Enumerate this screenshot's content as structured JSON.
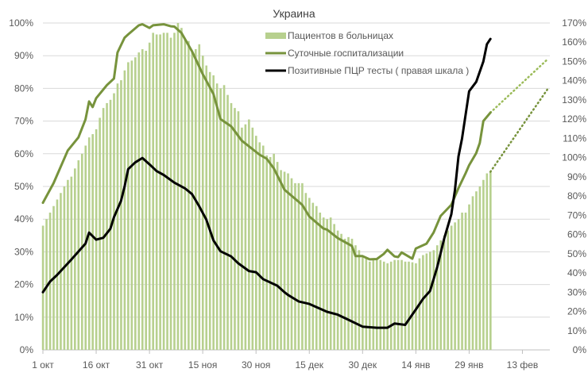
{
  "chart_data": {
    "type": "bar+line",
    "title": "Украина",
    "legend_position": "top-center",
    "grid": true,
    "colors": {
      "bars": "#b7d08e",
      "daily_line": "#77933c",
      "pcr_line": "#000000",
      "grid": "#d9d9d9"
    },
    "y_left": {
      "range": [
        0,
        100
      ],
      "ticks": [
        "0%",
        "10%",
        "20%",
        "30%",
        "40%",
        "50%",
        "60%",
        "70%",
        "80%",
        "90%",
        "100%"
      ]
    },
    "y_right": {
      "range": [
        0,
        170
      ],
      "ticks": [
        "0%",
        "10%",
        "20%",
        "30%",
        "40%",
        "50%",
        "60%",
        "70%",
        "80%",
        "90%",
        "100%",
        "110%",
        "120%",
        "130%",
        "140%",
        "150%",
        "160%",
        "170%"
      ]
    },
    "x_ticks": [
      "1 окт",
      "16 окт",
      "31 окт",
      "15 ноя",
      "30 ноя",
      "15 дек",
      "30 дек",
      "14 янв",
      "29 янв",
      "13 фев"
    ],
    "bars": {
      "name": "Пациентов в больницах",
      "axis": "left",
      "categories": [
        "1 окт",
        "2 окт",
        "3 окт",
        "4 окт",
        "5 окт",
        "6 окт",
        "7 окт",
        "8 окт",
        "9 окт",
        "10 окт",
        "11 окт",
        "12 окт",
        "13 окт",
        "14 окт",
        "15 окт",
        "16 окт",
        "17 окт",
        "18 окт",
        "19 окт",
        "20 окт",
        "21 окт",
        "22 окт",
        "23 окт",
        "24 окт",
        "25 окт",
        "26 окт",
        "27 окт",
        "28 окт",
        "29 окт",
        "30 окт",
        "31 окт",
        "1 ноя",
        "2 ноя",
        "3 ноя",
        "4 ноя",
        "5 ноя",
        "6 ноя",
        "7 ноя",
        "8 ноя",
        "9 ноя",
        "10 ноя",
        "11 ноя",
        "12 ноя",
        "13 ноя",
        "14 ноя",
        "15 ноя",
        "16 ноя",
        "17 ноя",
        "18 ноя",
        "19 ноя",
        "20 ноя",
        "21 ноя",
        "22 ноя",
        "23 ноя",
        "24 ноя",
        "25 ноя",
        "26 ноя",
        "27 ноя",
        "28 ноя",
        "29 ноя",
        "30 ноя",
        "1 дек",
        "2 дек",
        "3 дек",
        "4 дек",
        "5 дек",
        "6 дек",
        "7 дек",
        "8 дек",
        "9 дек",
        "10 дек",
        "11 дек",
        "12 дек",
        "13 дек",
        "14 дек",
        "15 дек",
        "16 дек",
        "17 дек",
        "18 дек",
        "19 дек",
        "20 дек",
        "21 дек",
        "22 дек",
        "23 дек",
        "24 дек",
        "25 дек",
        "26 дек",
        "27 дек",
        "28 дек",
        "29 дек",
        "30 дек",
        "31 дек",
        "1 янв",
        "2 янв",
        "3 янв",
        "4 янв",
        "5 янв",
        "6 янв",
        "7 янв",
        "8 янв",
        "9 янв",
        "10 янв",
        "11 янв",
        "12 янв",
        "13 янв",
        "14 янв",
        "15 янв",
        "16 янв",
        "17 янв",
        "18 янв",
        "19 янв",
        "20 янв",
        "21 янв",
        "22 янв",
        "23 янв",
        "24 янв",
        "25 янв",
        "26 янв",
        "27 янв",
        "28 янв",
        "29 янв",
        "30 янв",
        "31 янв",
        "1 фев",
        "2 фев",
        "3 фев",
        "4 фев"
      ],
      "values": [
        38,
        40,
        42,
        44,
        46,
        48,
        50,
        52,
        53,
        55.5,
        58,
        60,
        62.5,
        65,
        66,
        67.5,
        71,
        74,
        75.5,
        76.5,
        78.5,
        81.5,
        82.5,
        85.5,
        88,
        88.5,
        89.5,
        91,
        92,
        91.5,
        94,
        97,
        96.5,
        96.5,
        97,
        97,
        95.5,
        97,
        100,
        98.5,
        95,
        94.5,
        91,
        92,
        93.5,
        90,
        87,
        85,
        84,
        81.5,
        80,
        81,
        78,
        75.5,
        74,
        73,
        68,
        69,
        70.5,
        68,
        65.5,
        63.5,
        62.5,
        59.5,
        59,
        60,
        57.5,
        55,
        54.5,
        54,
        52.5,
        51,
        51,
        51,
        48,
        46.5,
        45,
        44,
        42,
        40.5,
        40,
        40.5,
        38.5,
        36.5,
        35.5,
        34,
        34.5,
        34,
        32,
        30.5,
        28.5,
        28,
        27,
        28,
        27.5,
        27.5,
        27,
        26.5,
        27,
        27.5,
        27.5,
        27.5,
        27,
        27,
        26.8,
        26.5,
        28,
        29,
        29.5,
        30,
        30.5,
        32,
        33.5,
        35,
        36.5,
        38,
        39,
        40,
        42,
        42,
        44.5,
        47,
        48.5,
        50,
        52,
        54,
        54.5
      ],
      "trend": [
        [
          "4 фев",
          54.5
        ],
        [
          "20 фев",
          79.6
        ]
      ]
    },
    "lines": [
      {
        "name": "Суточные госпитализации",
        "axis": "left",
        "points": [
          [
            "1 окт",
            45
          ],
          [
            "4 окт",
            51
          ],
          [
            "8 окт",
            61
          ],
          [
            "11 окт",
            65
          ],
          [
            "13 окт",
            70.5
          ],
          [
            "14 окт",
            76
          ],
          [
            "15 окт",
            74.3
          ],
          [
            "16 окт",
            77
          ],
          [
            "19 окт",
            81
          ],
          [
            "21 окт",
            83
          ],
          [
            "22 окт",
            91
          ],
          [
            "24 окт",
            95.5
          ],
          [
            "25 окт",
            96.5
          ],
          [
            "28 окт",
            99.3
          ],
          [
            "29 окт",
            99.6
          ],
          [
            "31 окт",
            98.5
          ],
          [
            "1 ноя",
            99.3
          ],
          [
            "4 ноя",
            99.6
          ],
          [
            "6 ноя",
            99
          ],
          [
            "7 ноя",
            98.9
          ],
          [
            "9 ноя",
            97
          ],
          [
            "12 ноя",
            91.3
          ],
          [
            "15 ноя",
            84.4
          ],
          [
            "18 ноя",
            78.3
          ],
          [
            "20 ноя",
            70.6
          ],
          [
            "23 ноя",
            68.4
          ],
          [
            "26 ноя",
            64
          ],
          [
            "1 дек",
            59.7
          ],
          [
            "3 дек",
            58.5
          ],
          [
            "5 дек",
            55.5
          ],
          [
            "8 дек",
            49
          ],
          [
            "13 дек",
            44.4
          ],
          [
            "15 дек",
            40.8
          ],
          [
            "19 дек",
            37.1
          ],
          [
            "20 дек",
            36.8
          ],
          [
            "23 дек",
            34.2
          ],
          [
            "27 дек",
            31.8
          ],
          [
            "28 дек",
            28.7
          ],
          [
            "30 дек",
            28.7
          ],
          [
            "1 янв",
            27.7
          ],
          [
            "3 янв",
            27.8
          ],
          [
            "5 янв",
            29.4
          ],
          [
            "6 янв",
            30.6
          ],
          [
            "8 янв",
            28.6
          ],
          [
            "9 янв",
            28.4
          ],
          [
            "10 янв",
            29.8
          ],
          [
            "13 янв",
            27.9
          ],
          [
            "14 янв",
            31
          ],
          [
            "17 янв",
            32.5
          ],
          [
            "19 янв",
            35.9
          ],
          [
            "21 янв",
            41
          ],
          [
            "24 янв",
            44.4
          ],
          [
            "26 янв",
            49.5
          ],
          [
            "28 янв",
            54
          ],
          [
            "29 янв",
            56.5
          ],
          [
            "31 янв",
            60.2
          ],
          [
            "1 фев",
            63.3
          ],
          [
            "2 фев",
            70
          ],
          [
            "4 фев",
            72.6
          ]
        ],
        "trend": [
          [
            "4 фев",
            72.6
          ],
          [
            "20 фев",
            88.8
          ]
        ]
      },
      {
        "name": "Позитивные ПЦР тесты ( правая шкала )",
        "axis": "right",
        "points": [
          [
            "1 окт",
            30
          ],
          [
            "3 окт",
            35.5
          ],
          [
            "5 окт",
            39
          ],
          [
            "9 окт",
            47
          ],
          [
            "13 окт",
            55.3
          ],
          [
            "14 окт",
            61
          ],
          [
            "16 окт",
            57.3
          ],
          [
            "18 окт",
            58.3
          ],
          [
            "20 окт",
            63
          ],
          [
            "21 окт",
            69
          ],
          [
            "23 окт",
            77.5
          ],
          [
            "24 окт",
            85
          ],
          [
            "25 окт",
            94
          ],
          [
            "27 окт",
            97.5
          ],
          [
            "29 окт",
            99.8
          ],
          [
            "31 окт",
            96.5
          ],
          [
            "2 ноя",
            93
          ],
          [
            "4 ноя",
            91
          ],
          [
            "7 ноя",
            87
          ],
          [
            "10 ноя",
            84
          ],
          [
            "12 ноя",
            81
          ],
          [
            "14 ноя",
            74.7
          ],
          [
            "16 ноя",
            67.8
          ],
          [
            "18 ноя",
            57
          ],
          [
            "20 ноя",
            51.3
          ],
          [
            "23 ноя",
            48.6
          ],
          [
            "25 ноя",
            45
          ],
          [
            "28 ноя",
            41
          ],
          [
            "30 ноя",
            40.4
          ],
          [
            "2 дек",
            36.8
          ],
          [
            "6 дек",
            33.4
          ],
          [
            "8 дек",
            30
          ],
          [
            "9 дек",
            28.6
          ],
          [
            "12 дек",
            25.2
          ],
          [
            "15 дек",
            23.9
          ],
          [
            "20 дек",
            19.8
          ],
          [
            "23 дек",
            18.3
          ],
          [
            "26 дек",
            15.7
          ],
          [
            "30 дек",
            12.1
          ],
          [
            "3 янв",
            11.5
          ],
          [
            "6 янв",
            11.5
          ],
          [
            "8 янв",
            13.7
          ],
          [
            "11 янв",
            13
          ],
          [
            "14 янв",
            21
          ],
          [
            "16 янв",
            26.5
          ],
          [
            "18 янв",
            30.6
          ],
          [
            "20 янв",
            43
          ],
          [
            "22 янв",
            58
          ],
          [
            "24 янв",
            70.5
          ],
          [
            "25 янв",
            83
          ],
          [
            "26 янв",
            100.6
          ],
          [
            "27 янв",
            110
          ],
          [
            "29 янв",
            134.5
          ],
          [
            "31 янв",
            139.4
          ],
          [
            "2 фев",
            150
          ],
          [
            "3 фев",
            159
          ],
          [
            "4 фев",
            161.7
          ]
        ]
      }
    ]
  }
}
